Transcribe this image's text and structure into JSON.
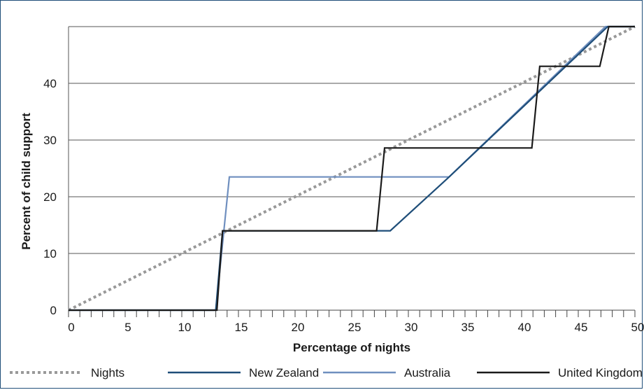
{
  "chart_data": {
    "type": "line",
    "title": "",
    "xlabel": "Percentage of nights",
    "ylabel": "Percent of child support",
    "xlim": [
      0,
      50
    ],
    "ylim": [
      0,
      50
    ],
    "x_ticks": [
      0,
      5,
      10,
      15,
      20,
      25,
      30,
      35,
      40,
      45,
      50
    ],
    "y_ticks": [
      0,
      10,
      20,
      30,
      40
    ],
    "grid": "horizontal",
    "legend_position": "bottom",
    "series": [
      {
        "name": "Nights",
        "color": "#999999",
        "style": "dotted",
        "points": [
          [
            0,
            0
          ],
          [
            50,
            50
          ]
        ]
      },
      {
        "name": "New Zealand",
        "color": "#1f4e79",
        "style": "solid",
        "points": [
          [
            0,
            0
          ],
          [
            13,
            0
          ],
          [
            13.6,
            14
          ],
          [
            28.4,
            14
          ],
          [
            33.6,
            23.5
          ],
          [
            47.6,
            50
          ],
          [
            50,
            50
          ]
        ]
      },
      {
        "name": "Australia",
        "color": "#6f8fbf",
        "style": "solid",
        "points": [
          [
            0,
            0
          ],
          [
            13,
            0
          ],
          [
            14.2,
            23.5
          ],
          [
            33.6,
            23.5
          ],
          [
            47.4,
            50
          ],
          [
            50,
            50
          ]
        ]
      },
      {
        "name": "United Kingdom",
        "color": "#1a1a1a",
        "style": "solid",
        "points": [
          [
            0,
            0
          ],
          [
            13.1,
            0
          ],
          [
            13.6,
            14
          ],
          [
            27.2,
            14
          ],
          [
            27.9,
            28.6
          ],
          [
            40.9,
            28.6
          ],
          [
            41.6,
            43
          ],
          [
            46.9,
            43
          ],
          [
            47.7,
            50
          ],
          [
            50,
            50
          ]
        ]
      }
    ]
  }
}
